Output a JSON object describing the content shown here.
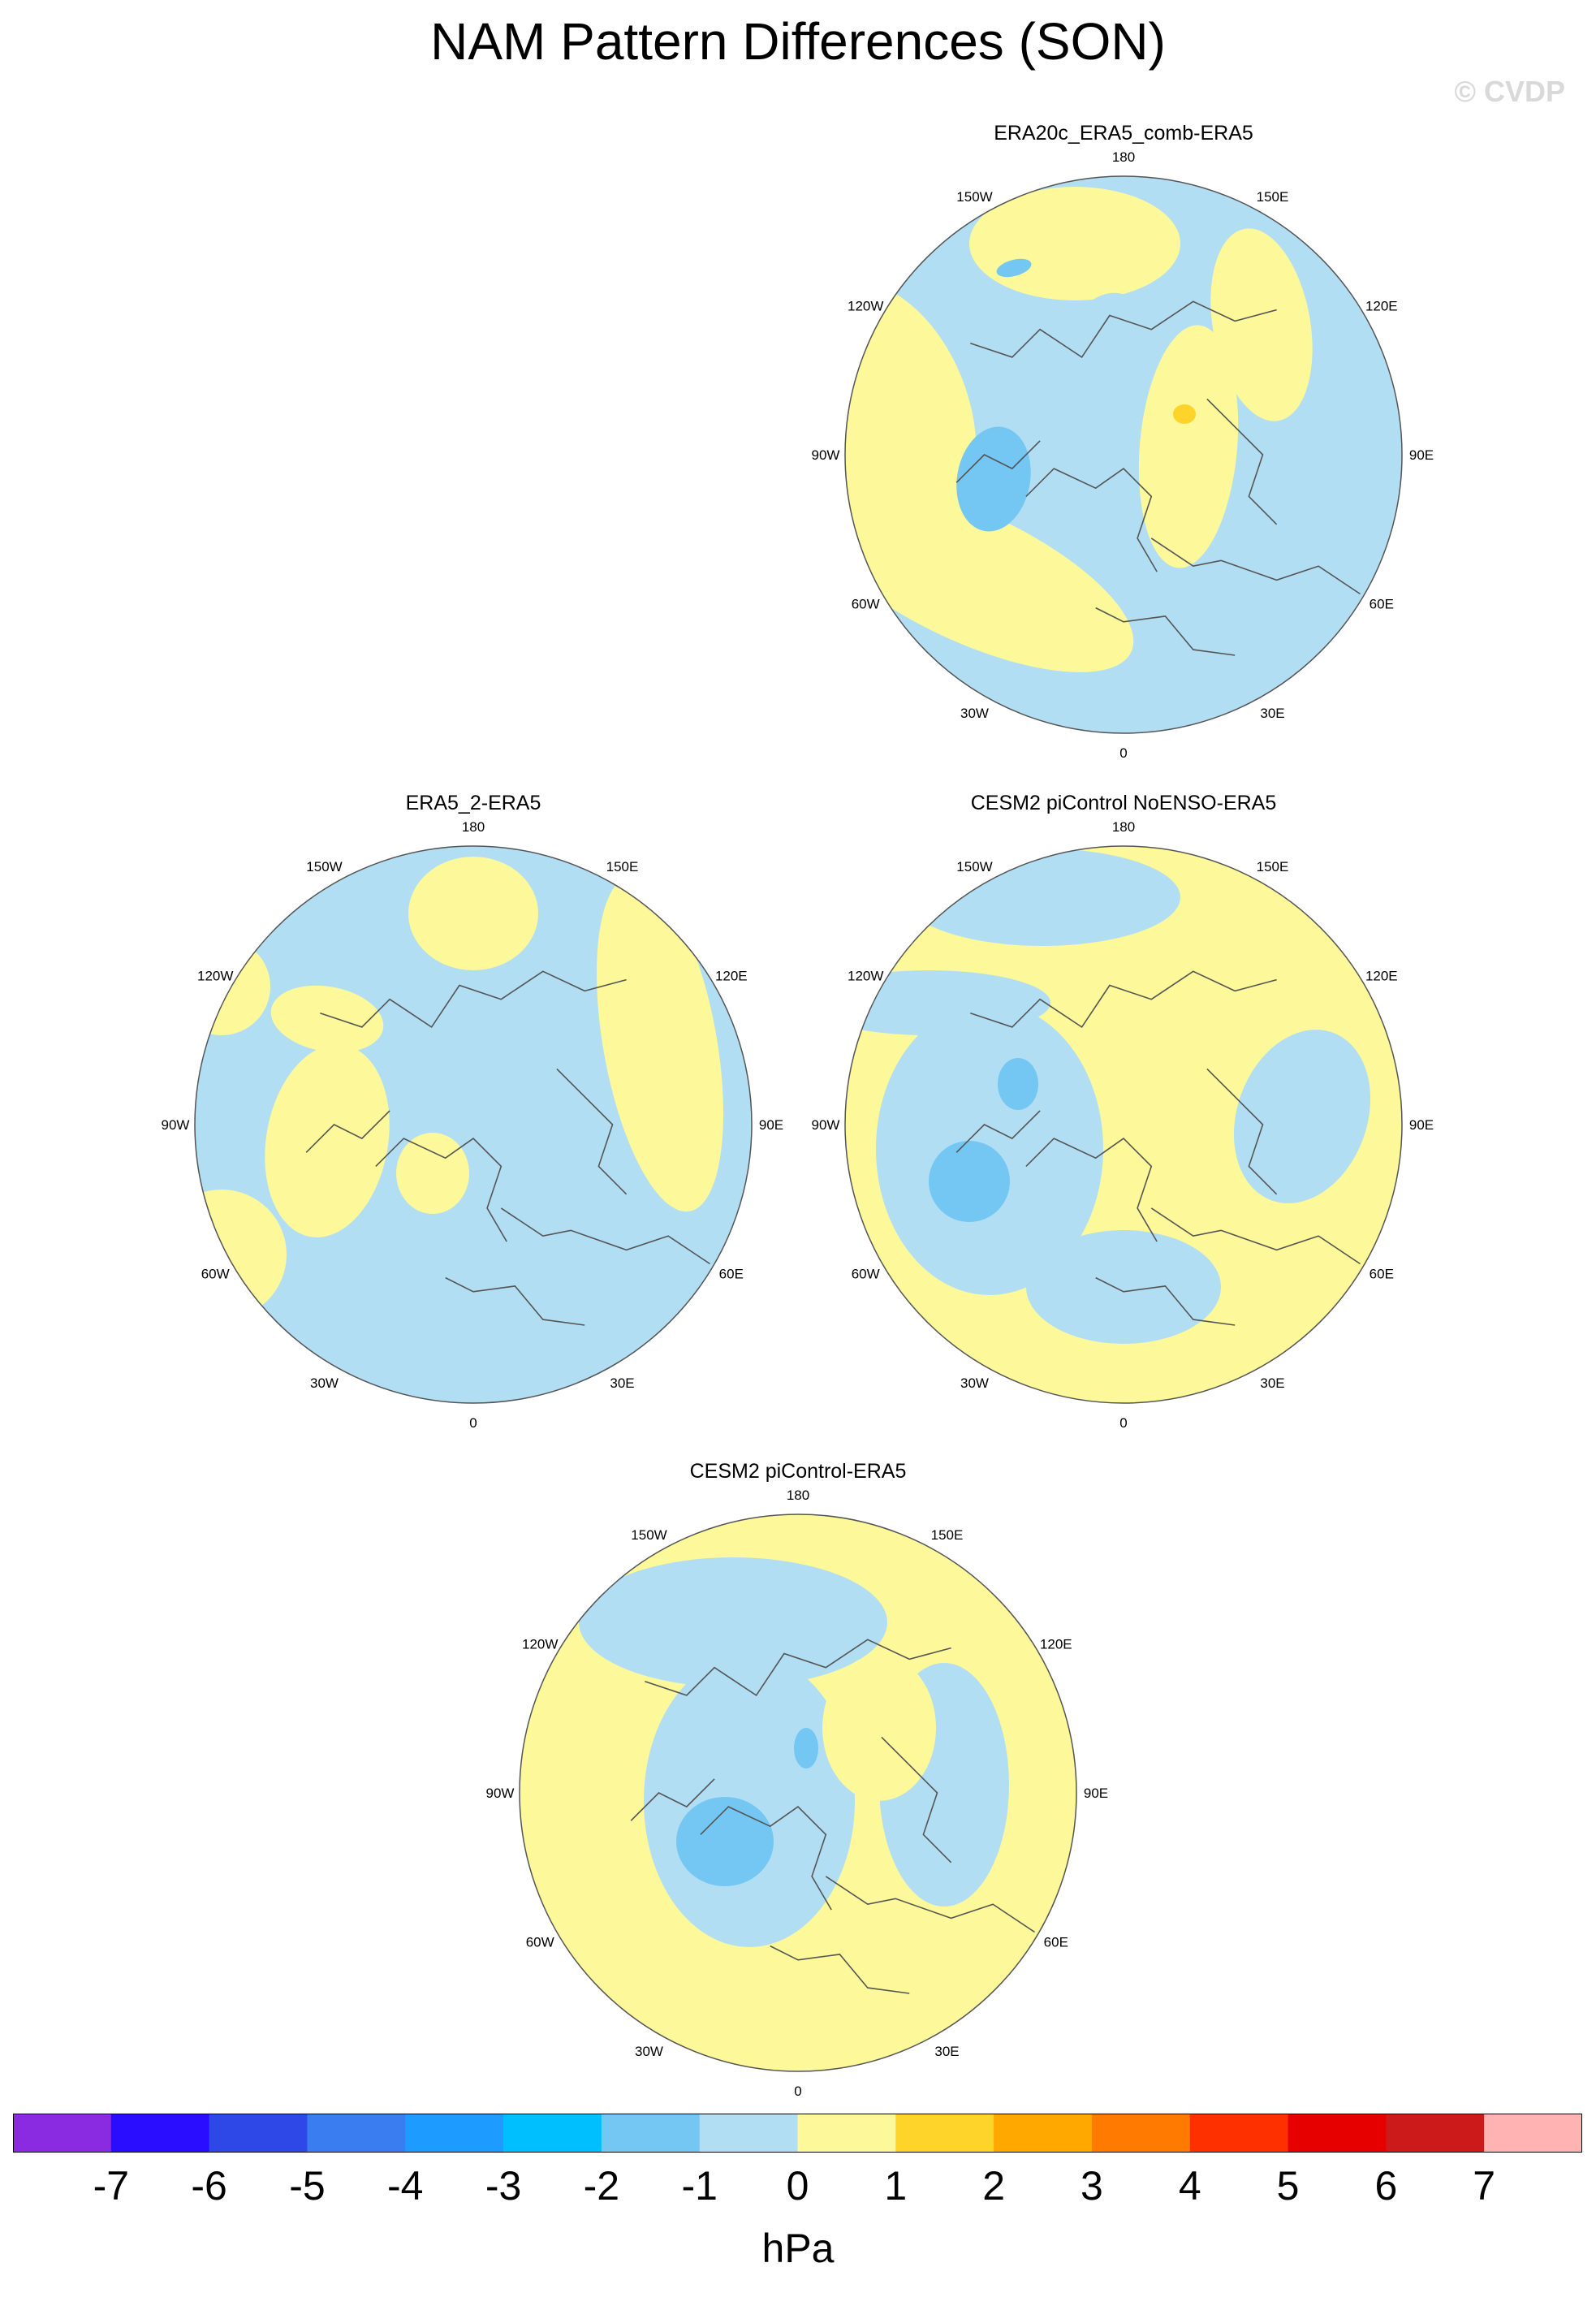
{
  "figure": {
    "title": "NAM Pattern Differences (SON)",
    "watermark": "© CVDP"
  },
  "longitude_labels": [
    "180",
    "150E",
    "120E",
    "90E",
    "60E",
    "30E",
    "0",
    "30W",
    "60W",
    "90W",
    "120W",
    "150W"
  ],
  "panels": [
    {
      "id": "p1",
      "title": "ERA20c_ERA5_comb-ERA5"
    },
    {
      "id": "p2",
      "title": "ERA5_2-ERA5"
    },
    {
      "id": "p3",
      "title": "CESM2 piControl NoENSO-ERA5"
    },
    {
      "id": "p4",
      "title": "CESM2 piControl-ERA5"
    }
  ],
  "colorbar": {
    "units": "hPa",
    "tick_labels": [
      "-7",
      "-6",
      "-5",
      "-4",
      "-3",
      "-2",
      "-1",
      "0",
      "1",
      "2",
      "3",
      "4",
      "5",
      "6",
      "7"
    ],
    "colors": [
      "#8a2be2",
      "#2a0cff",
      "#2e48e8",
      "#3a7df0",
      "#1e9bff",
      "#00bfff",
      "#73c7f2",
      "#b2def4",
      "#fdf89a",
      "#ffd42a",
      "#ffa800",
      "#ff7a00",
      "#ff3000",
      "#e60000",
      "#cc1a1a",
      "#ffb3b3"
    ]
  },
  "colors": {
    "neg1": "#b2def4",
    "neg2": "#73c7f2",
    "pos1": "#fdf89a",
    "pos2": "#ffd42a",
    "coast": "#555555"
  }
}
